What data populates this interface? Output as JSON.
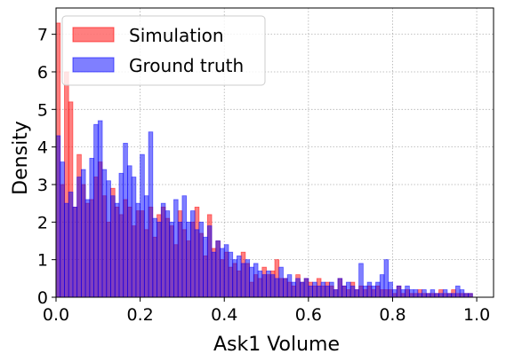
{
  "chart_data": {
    "type": "histogram",
    "xlabel": "Ask1 Volume",
    "ylabel": "Density",
    "xlim": [
      0,
      1.04
    ],
    "ylim": [
      0,
      7.7
    ],
    "xticks": [
      "0.0",
      "0.2",
      "0.4",
      "0.6",
      "0.8",
      "1.0"
    ],
    "yticks": [
      "0",
      "1",
      "2",
      "3",
      "4",
      "5",
      "6",
      "7"
    ],
    "grid": true,
    "legend_position": "top-left",
    "bin_width": 0.01,
    "series": [
      {
        "name": "Simulation",
        "color": "#ff0000",
        "values": [
          7.3,
          3.0,
          6.0,
          5.2,
          2.4,
          3.8,
          3.0,
          2.5,
          2.6,
          3.2,
          3.6,
          2.7,
          2.0,
          2.9,
          2.4,
          2.2,
          2.6,
          2.4,
          1.9,
          2.3,
          2.3,
          1.8,
          2.4,
          1.6,
          2.2,
          2.4,
          2.1,
          1.9,
          1.4,
          2.3,
          1.8,
          1.5,
          2.0,
          2.4,
          1.7,
          1.1,
          2.2,
          1.3,
          1.5,
          1.0,
          1.2,
          0.8,
          0.9,
          0.7,
          1.2,
          0.9,
          0.4,
          0.6,
          0.5,
          0.8,
          0.6,
          0.7,
          1.0,
          0.5,
          0.5,
          0.4,
          0.3,
          0.6,
          0.4,
          0.5,
          0.4,
          0.3,
          0.5,
          0.3,
          0.4,
          0.3,
          0.2,
          0.5,
          0.3,
          0.2,
          0.4,
          0.2,
          0.3,
          0.2,
          0.3,
          0.2,
          0.3,
          0.2,
          0.2,
          0.2,
          0.1,
          0.3,
          0.1,
          0.2,
          0.1,
          0.1,
          0.2,
          0.1,
          0.1,
          0.1,
          0.1,
          0.2,
          0.1,
          0.1,
          0.2,
          0.1,
          0.1,
          0.1,
          0.1,
          0.0
        ]
      },
      {
        "name": "Ground truth",
        "color": "#0000ff",
        "values": [
          4.3,
          3.6,
          2.5,
          2.8,
          2.4,
          3.2,
          3.4,
          2.6,
          3.7,
          4.6,
          4.7,
          3.4,
          3.1,
          2.7,
          2.5,
          3.3,
          4.1,
          3.5,
          3.2,
          2.5,
          3.8,
          2.7,
          4.4,
          2.1,
          2.0,
          2.5,
          2.3,
          2.0,
          2.6,
          2.0,
          2.7,
          2.0,
          2.3,
          1.8,
          2.0,
          1.6,
          1.9,
          1.2,
          1.5,
          1.3,
          1.4,
          1.2,
          1.0,
          1.1,
          0.9,
          1.0,
          0.8,
          0.9,
          0.7,
          0.6,
          0.7,
          0.6,
          0.5,
          0.8,
          0.5,
          0.6,
          0.4,
          0.5,
          0.4,
          0.5,
          0.3,
          0.4,
          0.3,
          0.4,
          0.3,
          0.4,
          0.2,
          0.5,
          0.3,
          0.4,
          0.3,
          0.2,
          0.9,
          0.3,
          0.4,
          0.3,
          0.4,
          0.6,
          1.0,
          0.4,
          0.2,
          0.3,
          0.2,
          0.3,
          0.2,
          0.2,
          0.1,
          0.2,
          0.1,
          0.2,
          0.1,
          0.1,
          0.2,
          0.1,
          0.1,
          0.3,
          0.2,
          0.1,
          0.1,
          0.0
        ]
      }
    ]
  }
}
